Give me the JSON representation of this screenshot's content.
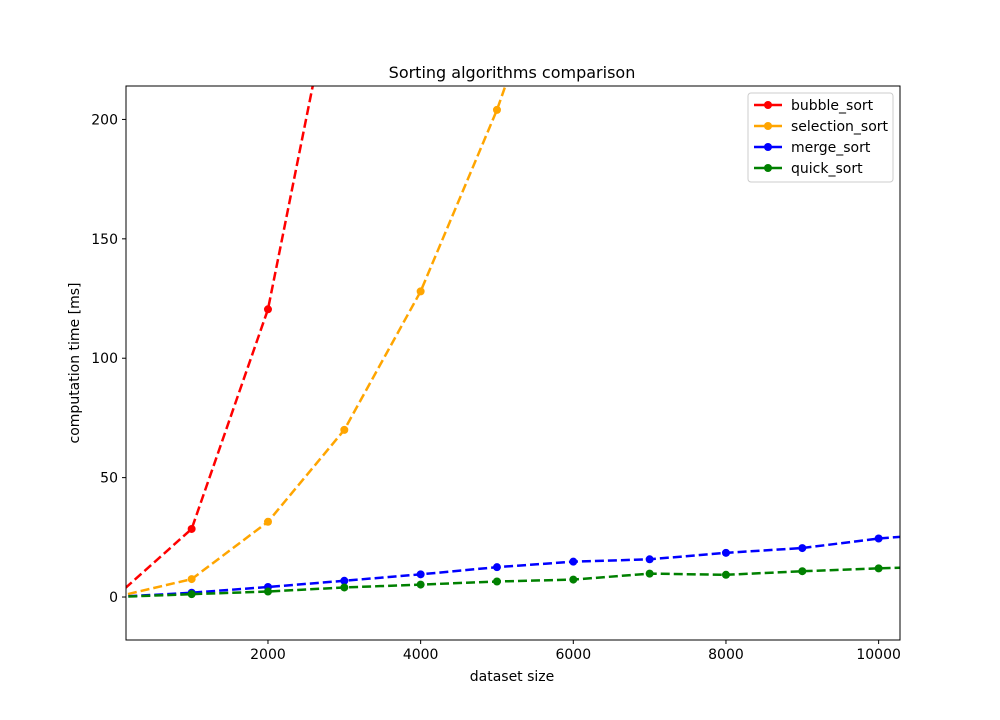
{
  "chart_data": {
    "type": "line",
    "title": "Sorting algorithms comparison",
    "xlabel": "dataset size",
    "ylabel": "computation time [ms]",
    "xlim": [
      140,
      10280
    ],
    "ylim": [
      -18,
      214
    ],
    "x_ticks": [
      2000,
      4000,
      6000,
      8000,
      10000
    ],
    "y_ticks": [
      0,
      50,
      100,
      150,
      200
    ],
    "grid": false,
    "legend_position": "top-right",
    "line_style": "dashed",
    "series": [
      {
        "name": "bubble_sort",
        "color": "#ff0000",
        "x": [
          0,
          1000,
          2000,
          3000
        ],
        "y": [
          0,
          28.5,
          120.5,
          280
        ]
      },
      {
        "name": "selection_sort",
        "color": "#ffa500",
        "x": [
          0,
          1000,
          2000,
          3000,
          4000,
          5000,
          6000
        ],
        "y": [
          0,
          7.5,
          31.5,
          70,
          128,
          204,
          295
        ]
      },
      {
        "name": "merge_sort",
        "color": "#0000ff",
        "x": [
          0,
          1000,
          2000,
          3000,
          4000,
          5000,
          6000,
          7000,
          8000,
          9000,
          10000,
          11000
        ],
        "y": [
          0,
          1.8,
          4.2,
          6.8,
          9.5,
          12.5,
          14.8,
          15.8,
          18.5,
          20.5,
          24.5,
          27
        ]
      },
      {
        "name": "quick_sort",
        "color": "#008000",
        "x": [
          0,
          1000,
          2000,
          3000,
          4000,
          5000,
          6000,
          7000,
          8000,
          9000,
          10000,
          11000
        ],
        "y": [
          0,
          1.2,
          2.3,
          4.0,
          5.2,
          6.5,
          7.3,
          9.8,
          9.3,
          10.8,
          12.0,
          13
        ]
      }
    ]
  }
}
